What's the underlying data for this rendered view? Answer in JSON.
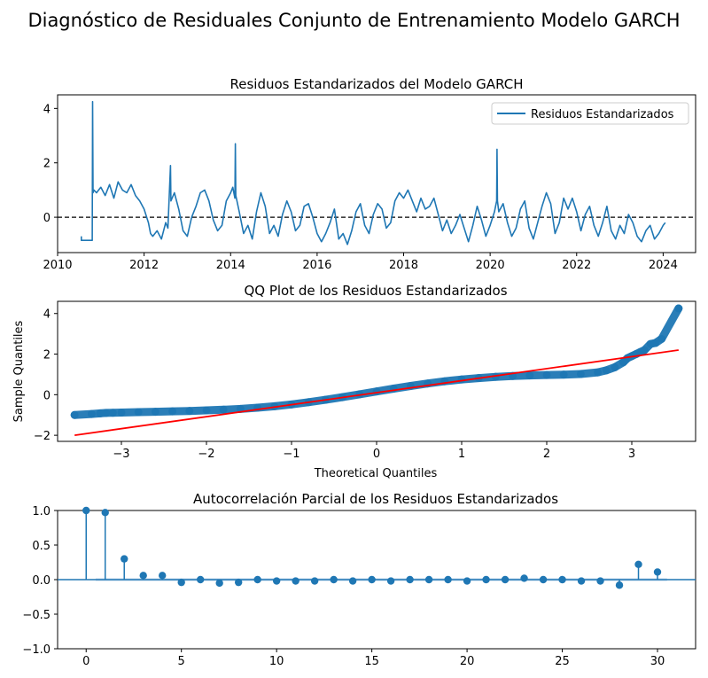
{
  "figure": {
    "suptitle": "Diagnóstico de Residuales Conjunto de Entrenamiento Modelo GARCH",
    "colors": {
      "series": "#1f77b4",
      "fitline": "#ff0000",
      "zero": "#000000",
      "band": "#a6c8e6"
    }
  },
  "chart_data": [
    {
      "type": "line",
      "title": "Residuos Estandarizados del Modelo GARCH",
      "xlabel": "",
      "ylabel": "",
      "xlim": [
        2010.0,
        2024.75
      ],
      "ylim": [
        -1.3,
        4.5
      ],
      "xticks": [
        2010,
        2012,
        2014,
        2016,
        2018,
        2020,
        2022,
        2024
      ],
      "yticks": [
        0,
        2,
        4
      ],
      "legend": {
        "position": "top-right",
        "entries": [
          "Residuos Estandarizados"
        ]
      },
      "zero_line": {
        "y": 0,
        "style": "dashed"
      },
      "series": [
        {
          "name": "Residuos Estandarizados",
          "x": [
            2010.55,
            2010.55,
            2010.6,
            2010.8,
            2010.81,
            2010.82,
            2010.84,
            2010.9,
            2011.0,
            2011.1,
            2011.2,
            2011.3,
            2011.4,
            2011.5,
            2011.6,
            2011.7,
            2011.8,
            2011.9,
            2012.0,
            2012.1,
            2012.15,
            2012.2,
            2012.3,
            2012.4,
            2012.5,
            2012.55,
            2012.6,
            2012.61,
            2012.62,
            2012.7,
            2012.8,
            2012.9,
            2013.0,
            2013.1,
            2013.2,
            2013.3,
            2013.4,
            2013.5,
            2013.6,
            2013.7,
            2013.8,
            2013.9,
            2014.0,
            2014.05,
            2014.1,
            2014.11,
            2014.12,
            2014.2,
            2014.3,
            2014.4,
            2014.5,
            2014.6,
            2014.7,
            2014.8,
            2014.9,
            2015.0,
            2015.1,
            2015.2,
            2015.3,
            2015.4,
            2015.5,
            2015.6,
            2015.7,
            2015.8,
            2015.9,
            2016.0,
            2016.1,
            2016.2,
            2016.3,
            2016.4,
            2016.5,
            2016.6,
            2016.7,
            2016.8,
            2016.9,
            2017.0,
            2017.1,
            2017.2,
            2017.3,
            2017.4,
            2017.5,
            2017.6,
            2017.7,
            2017.8,
            2017.9,
            2018.0,
            2018.1,
            2018.2,
            2018.3,
            2018.4,
            2018.5,
            2018.6,
            2018.7,
            2018.8,
            2018.9,
            2019.0,
            2019.1,
            2019.2,
            2019.3,
            2019.4,
            2019.5,
            2019.6,
            2019.7,
            2019.8,
            2019.9,
            2020.0,
            2020.1,
            2020.15,
            2020.16,
            2020.17,
            2020.2,
            2020.3,
            2020.4,
            2020.5,
            2020.6,
            2020.7,
            2020.8,
            2020.9,
            2021.0,
            2021.1,
            2021.2,
            2021.3,
            2021.4,
            2021.5,
            2021.6,
            2021.7,
            2021.8,
            2021.9,
            2022.0,
            2022.1,
            2022.2,
            2022.3,
            2022.4,
            2022.5,
            2022.6,
            2022.7,
            2022.8,
            2022.9,
            2023.0,
            2023.1,
            2023.2,
            2023.3,
            2023.4,
            2023.5,
            2023.6,
            2023.7,
            2023.8,
            2023.9,
            2024.0,
            2024.05
          ],
          "values": [
            -0.7,
            -0.85,
            -0.85,
            -0.85,
            4.25,
            0.9,
            1.0,
            0.9,
            1.1,
            0.8,
            1.2,
            0.7,
            1.3,
            1.0,
            0.9,
            1.2,
            0.8,
            0.6,
            0.3,
            -0.2,
            -0.6,
            -0.7,
            -0.5,
            -0.8,
            -0.2,
            -0.4,
            1.5,
            1.9,
            0.6,
            0.9,
            0.3,
            -0.5,
            -0.7,
            0.0,
            0.4,
            0.9,
            1.0,
            0.6,
            -0.1,
            -0.5,
            -0.3,
            0.6,
            0.9,
            1.1,
            0.7,
            2.7,
            0.8,
            0.2,
            -0.6,
            -0.3,
            -0.8,
            0.2,
            0.9,
            0.4,
            -0.6,
            -0.3,
            -0.7,
            0.1,
            0.6,
            0.2,
            -0.5,
            -0.3,
            0.4,
            0.5,
            0.0,
            -0.6,
            -0.9,
            -0.6,
            -0.2,
            0.3,
            -0.8,
            -0.6,
            -1.0,
            -0.5,
            0.2,
            0.5,
            -0.3,
            -0.6,
            0.1,
            0.5,
            0.3,
            -0.4,
            -0.2,
            0.6,
            0.9,
            0.7,
            1.0,
            0.6,
            0.2,
            0.7,
            0.3,
            0.4,
            0.7,
            0.1,
            -0.5,
            -0.1,
            -0.6,
            -0.3,
            0.1,
            -0.4,
            -0.9,
            -0.3,
            0.4,
            -0.1,
            -0.7,
            -0.3,
            0.2,
            0.6,
            2.5,
            0.6,
            0.2,
            0.5,
            -0.2,
            -0.7,
            -0.4,
            0.3,
            0.6,
            -0.4,
            -0.8,
            -0.2,
            0.4,
            0.9,
            0.5,
            -0.6,
            -0.2,
            0.7,
            0.3,
            0.7,
            0.2,
            -0.5,
            0.1,
            0.4,
            -0.3,
            -0.7,
            -0.2,
            0.4,
            -0.5,
            -0.8,
            -0.3,
            -0.6,
            0.1,
            -0.2,
            -0.7,
            -0.9,
            -0.5,
            -0.3,
            -0.8,
            -0.6,
            -0.3,
            -0.2
          ]
        }
      ]
    },
    {
      "type": "scatter",
      "title": "QQ Plot de los Residuos Estandarizados",
      "xlabel": "Theoretical Quantiles",
      "ylabel": "Sample Quantiles",
      "xlim": [
        -3.75,
        3.75
      ],
      "ylim": [
        -2.3,
        4.6
      ],
      "xticks": [
        -3,
        -2,
        -1,
        0,
        1,
        2,
        3
      ],
      "yticks": [
        -2,
        0,
        2,
        4
      ],
      "reference_line": {
        "x": [
          -3.55,
          3.55
        ],
        "y": [
          -2.0,
          2.2
        ]
      },
      "series": [
        {
          "name": "",
          "x": [
            -3.55,
            -3.35,
            -3.25,
            -3.18,
            -3.1,
            -3.0,
            -2.8,
            -2.6,
            -2.4,
            -2.2,
            -2.0,
            -1.8,
            -1.6,
            -1.4,
            -1.2,
            -1.0,
            -0.8,
            -0.6,
            -0.4,
            -0.2,
            0.0,
            0.2,
            0.4,
            0.6,
            0.8,
            1.0,
            1.2,
            1.4,
            1.6,
            1.8,
            2.0,
            2.2,
            2.4,
            2.6,
            2.7,
            2.8,
            2.9,
            2.95,
            3.0,
            3.05,
            3.1,
            3.15,
            3.22,
            3.28,
            3.35,
            3.55
          ],
          "values": [
            -1.0,
            -0.95,
            -0.92,
            -0.9,
            -0.89,
            -0.88,
            -0.86,
            -0.84,
            -0.82,
            -0.8,
            -0.77,
            -0.74,
            -0.7,
            -0.64,
            -0.57,
            -0.48,
            -0.37,
            -0.25,
            -0.12,
            0.02,
            0.16,
            0.3,
            0.43,
            0.55,
            0.66,
            0.75,
            0.82,
            0.88,
            0.92,
            0.95,
            0.97,
            0.99,
            1.02,
            1.1,
            1.2,
            1.35,
            1.6,
            1.8,
            1.9,
            2.0,
            2.1,
            2.2,
            2.5,
            2.55,
            2.75,
            4.25
          ]
        }
      ]
    },
    {
      "type": "line",
      "title": "Autocorrelación Parcial de los Residuos Estandarizados",
      "xlabel": "",
      "ylabel": "",
      "xlim": [
        -1.5,
        32
      ],
      "ylim": [
        -1.0,
        1.0
      ],
      "xticks": [
        0,
        5,
        10,
        15,
        20,
        25,
        30
      ],
      "yticks": [
        -1.0,
        -0.5,
        0.0,
        0.5,
        1.0
      ],
      "confidence_band": [
        -0.02,
        0.02
      ],
      "series": [
        {
          "name": "",
          "x": [
            0,
            1,
            2,
            3,
            4,
            5,
            6,
            7,
            8,
            9,
            10,
            11,
            12,
            13,
            14,
            15,
            16,
            17,
            18,
            19,
            20,
            21,
            22,
            23,
            24,
            25,
            26,
            27,
            28,
            29,
            30
          ],
          "values": [
            1.0,
            0.97,
            0.3,
            0.06,
            0.06,
            -0.04,
            0.0,
            -0.05,
            -0.04,
            0.0,
            -0.02,
            -0.02,
            -0.02,
            0.0,
            -0.02,
            0.0,
            -0.02,
            0.0,
            0.0,
            0.0,
            -0.02,
            0.0,
            0.0,
            0.02,
            0.0,
            0.0,
            -0.02,
            -0.02,
            -0.08,
            0.22,
            0.11
          ]
        }
      ]
    }
  ]
}
